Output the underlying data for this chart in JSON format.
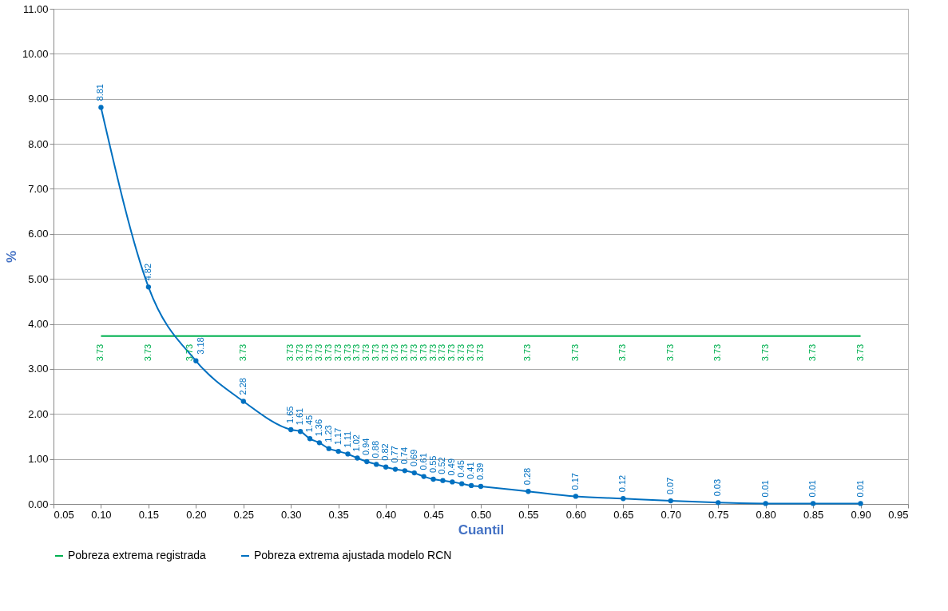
{
  "chart_data": {
    "type": "line",
    "xlabel": "Cuantil",
    "ylabel": "%",
    "xlim": [
      0.05,
      0.95
    ],
    "xticks": [
      {
        "value": 0.05,
        "label": "0.05"
      },
      {
        "value": 0.1,
        "label": "0.10"
      },
      {
        "value": 0.15,
        "label": "0.15"
      },
      {
        "value": 0.2,
        "label": "0.20"
      },
      {
        "value": 0.25,
        "label": "0.25"
      },
      {
        "value": 0.3,
        "label": "0.30"
      },
      {
        "value": 0.35,
        "label": "0.35"
      },
      {
        "value": 0.4,
        "label": "0.40"
      },
      {
        "value": 0.45,
        "label": "0.45"
      },
      {
        "value": 0.5,
        "label": "0.50"
      },
      {
        "value": 0.55,
        "label": "0.55"
      },
      {
        "value": 0.6,
        "label": "0.60"
      },
      {
        "value": 0.65,
        "label": "0.65"
      },
      {
        "value": 0.7,
        "label": "0.70"
      },
      {
        "value": 0.75,
        "label": "0.75"
      },
      {
        "value": 0.8,
        "label": "0.80"
      },
      {
        "value": 0.85,
        "label": "0.85"
      },
      {
        "value": 0.9,
        "label": "0.90"
      },
      {
        "value": 0.95,
        "label": "0.95"
      }
    ],
    "ylim": [
      0,
      11
    ],
    "yticks": [
      {
        "value": 0,
        "label": "0.00"
      },
      {
        "value": 1,
        "label": "1.00"
      },
      {
        "value": 2,
        "label": "2.00"
      },
      {
        "value": 3,
        "label": "3.00"
      },
      {
        "value": 4,
        "label": "4.00"
      },
      {
        "value": 5,
        "label": "5.00"
      },
      {
        "value": 6,
        "label": "6.00"
      },
      {
        "value": 7,
        "label": "7.00"
      },
      {
        "value": 8,
        "label": "8.00"
      },
      {
        "value": 9,
        "label": "9.00"
      },
      {
        "value": 10,
        "label": "10.00"
      },
      {
        "value": 11,
        "label": "11.00"
      }
    ],
    "x": [
      0.1,
      0.15,
      0.2,
      0.25,
      0.3,
      0.31,
      0.32,
      0.33,
      0.34,
      0.35,
      0.36,
      0.37,
      0.38,
      0.39,
      0.4,
      0.41,
      0.42,
      0.43,
      0.44,
      0.45,
      0.46,
      0.47,
      0.48,
      0.49,
      0.5,
      0.55,
      0.6,
      0.65,
      0.7,
      0.75,
      0.8,
      0.85,
      0.9
    ],
    "series": [
      {
        "name": "Pobreza extrema registrada",
        "color": "#00b050",
        "marker": "none",
        "values": [
          3.73,
          3.73,
          3.73,
          3.73,
          3.73,
          3.73,
          3.73,
          3.73,
          3.73,
          3.73,
          3.73,
          3.73,
          3.73,
          3.73,
          3.73,
          3.73,
          3.73,
          3.73,
          3.73,
          3.73,
          3.73,
          3.73,
          3.73,
          3.73,
          3.73,
          3.73,
          3.73,
          3.73,
          3.73,
          3.73,
          3.73,
          3.73,
          3.73
        ]
      },
      {
        "name": "Pobreza extrema ajustada modelo RCN",
        "color": "#0070c0",
        "marker": "circle",
        "values": [
          8.81,
          4.82,
          3.18,
          2.28,
          1.65,
          1.61,
          1.45,
          1.36,
          1.23,
          1.17,
          1.11,
          1.02,
          0.94,
          0.88,
          0.82,
          0.77,
          0.74,
          0.69,
          0.61,
          0.55,
          0.52,
          0.49,
          0.45,
          0.41,
          0.39,
          0.28,
          0.17,
          0.12,
          0.07,
          0.03,
          0.01,
          0.01,
          0.01
        ]
      }
    ],
    "data_labels": true,
    "grid": "y",
    "legend": "bottom",
    "line_style": "solid"
  }
}
